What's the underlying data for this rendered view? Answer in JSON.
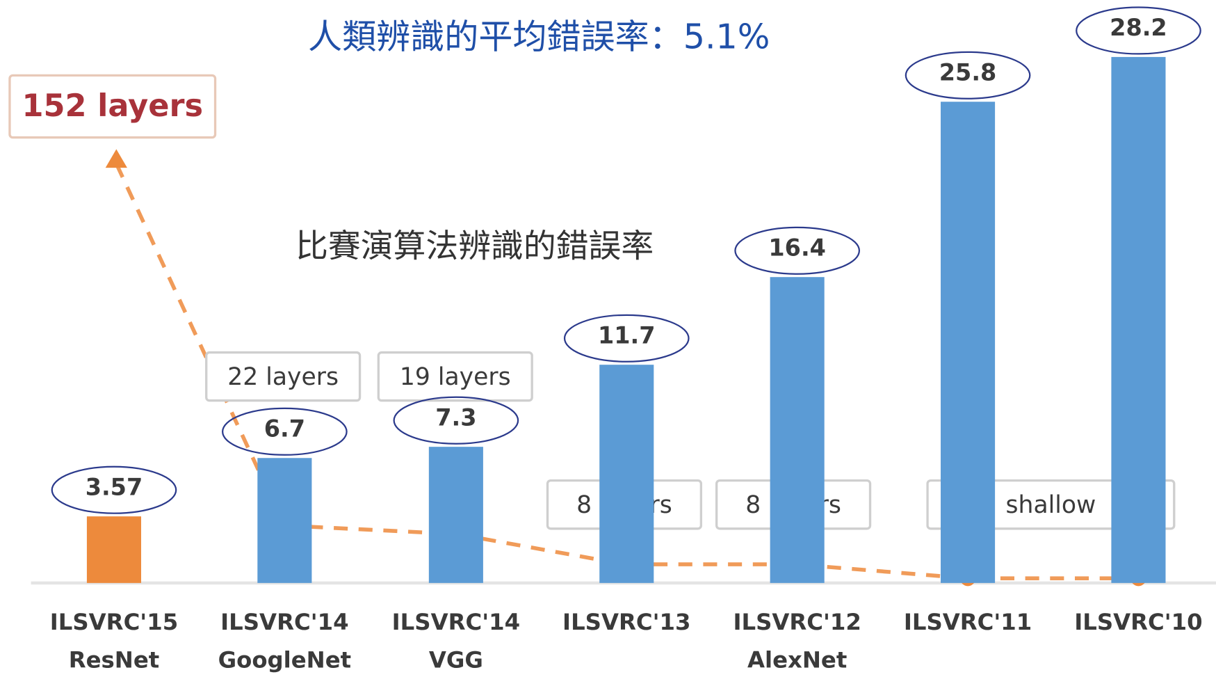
{
  "chart_data": {
    "type": "bar",
    "title": "人類辨識的平均錯誤率：5.1%",
    "subtitle": "比賽演算法辨識的錯誤率",
    "categories": [
      "ILSVRC'15",
      "ILSVRC'14",
      "ILSVRC'14",
      "ILSVRC'13",
      "ILSVRC'12",
      "ILSVRC'11",
      "ILSVRC'10"
    ],
    "models": [
      "ResNet",
      "GoogleNet",
      "VGG",
      null,
      "AlexNet",
      null,
      null
    ],
    "values": [
      3.57,
      6.7,
      7.3,
      11.7,
      16.4,
      25.8,
      28.2
    ],
    "colors": [
      "#ed8a3c",
      "#5b9bd5",
      "#5b9bd5",
      "#5b9bd5",
      "#5b9bd5",
      "#5b9bd5",
      "#5b9bd5"
    ],
    "ylim": [
      0,
      30
    ],
    "annotations": [
      "152 layers",
      "22 layers",
      "19 layers",
      "8 layers",
      "8 layers",
      "shallow"
    ]
  }
}
